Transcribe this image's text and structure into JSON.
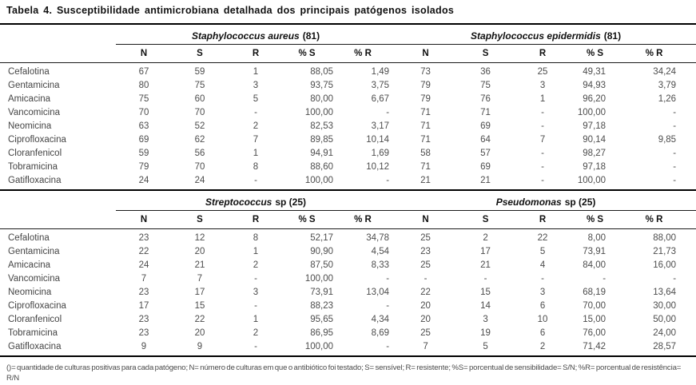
{
  "title": "Tabela 4. Susceptibilidade antimicrobiana detalhada dos principais patógenos isolados",
  "column_headers": [
    "N",
    "S",
    "R",
    "% S",
    "% R"
  ],
  "tables": [
    {
      "groups": [
        {
          "name_italic": "Staphylococcus aureus",
          "name_rest": "(81)"
        },
        {
          "name_italic": "Staphylococcus epidermidis",
          "name_rest": "(81)"
        }
      ],
      "rows": [
        {
          "drug": "Cefalotina",
          "values": [
            "67",
            "59",
            "1",
            "88,05",
            "1,49",
            "73",
            "36",
            "25",
            "49,31",
            "34,24"
          ]
        },
        {
          "drug": "Gentamicina",
          "values": [
            "80",
            "75",
            "3",
            "93,75",
            "3,75",
            "79",
            "75",
            "3",
            "94,93",
            "3,79"
          ]
        },
        {
          "drug": "Amicacina",
          "values": [
            "75",
            "60",
            "5",
            "80,00",
            "6,67",
            "79",
            "76",
            "1",
            "96,20",
            "1,26"
          ]
        },
        {
          "drug": "Vancomicina",
          "values": [
            "70",
            "70",
            "-",
            "100,00",
            "-",
            "71",
            "71",
            "-",
            "100,00",
            "-"
          ]
        },
        {
          "drug": "Neomicina",
          "values": [
            "63",
            "52",
            "2",
            "82,53",
            "3,17",
            "71",
            "69",
            "-",
            "97,18",
            "-"
          ]
        },
        {
          "drug": "Ciprofloxacina",
          "values": [
            "69",
            "62",
            "7",
            "89,85",
            "10,14",
            "71",
            "64",
            "7",
            "90,14",
            "9,85"
          ]
        },
        {
          "drug": "Cloranfenicol",
          "values": [
            "59",
            "56",
            "1",
            "94,91",
            "1,69",
            "58",
            "57",
            "-",
            "98,27",
            "-"
          ]
        },
        {
          "drug": "Tobramicina",
          "values": [
            "79",
            "70",
            "8",
            "88,60",
            "10,12",
            "71",
            "69",
            "-",
            "97,18",
            "-"
          ]
        },
        {
          "drug": "Gatifloxacina",
          "values": [
            "24",
            "24",
            "-",
            "100,00",
            "-",
            "21",
            "21",
            "-",
            "100,00",
            "-"
          ]
        }
      ]
    },
    {
      "groups": [
        {
          "name_italic": "Streptococcus",
          "name_rest": "sp (25)"
        },
        {
          "name_italic": "Pseudomonas",
          "name_rest": "sp (25)"
        }
      ],
      "rows": [
        {
          "drug": "Cefalotina",
          "values": [
            "23",
            "12",
            "8",
            "52,17",
            "34,78",
            "25",
            "2",
            "22",
            "8,00",
            "88,00"
          ]
        },
        {
          "drug": "Gentamicina",
          "values": [
            "22",
            "20",
            "1",
            "90,90",
            "4,54",
            "23",
            "17",
            "5",
            "73,91",
            "21,73"
          ]
        },
        {
          "drug": "Amicacina",
          "values": [
            "24",
            "21",
            "2",
            "87,50",
            "8,33",
            "25",
            "21",
            "4",
            "84,00",
            "16,00"
          ]
        },
        {
          "drug": "Vancomicina",
          "values": [
            "7",
            "7",
            "-",
            "100,00",
            "-",
            "-",
            "-",
            "-",
            "-",
            "-"
          ]
        },
        {
          "drug": "Neomicina",
          "values": [
            "23",
            "17",
            "3",
            "73,91",
            "13,04",
            "22",
            "15",
            "3",
            "68,19",
            "13,64"
          ]
        },
        {
          "drug": "Ciprofloxacina",
          "values": [
            "17",
            "15",
            "-",
            "88,23",
            "-",
            "20",
            "14",
            "6",
            "70,00",
            "30,00"
          ]
        },
        {
          "drug": "Cloranfenicol",
          "values": [
            "23",
            "22",
            "1",
            "95,65",
            "4,34",
            "20",
            "3",
            "10",
            "15,00",
            "50,00"
          ]
        },
        {
          "drug": "Tobramicina",
          "values": [
            "23",
            "20",
            "2",
            "86,95",
            "8,69",
            "25",
            "19",
            "6",
            "76,00",
            "24,00"
          ]
        },
        {
          "drug": "Gatifloxacina",
          "values": [
            "9",
            "9",
            "-",
            "100,00",
            "-",
            "7",
            "5",
            "2",
            "71,42",
            "28,57"
          ]
        }
      ]
    }
  ],
  "footnote": "()= quantidade de culturas positivas para cada patógeno; N= número de culturas em que o antibiótico foi testado; S= sensível; R= resistente; %S= porcentual de sensibilidade= S/N; %R= porcentual de resistência= R/N"
}
